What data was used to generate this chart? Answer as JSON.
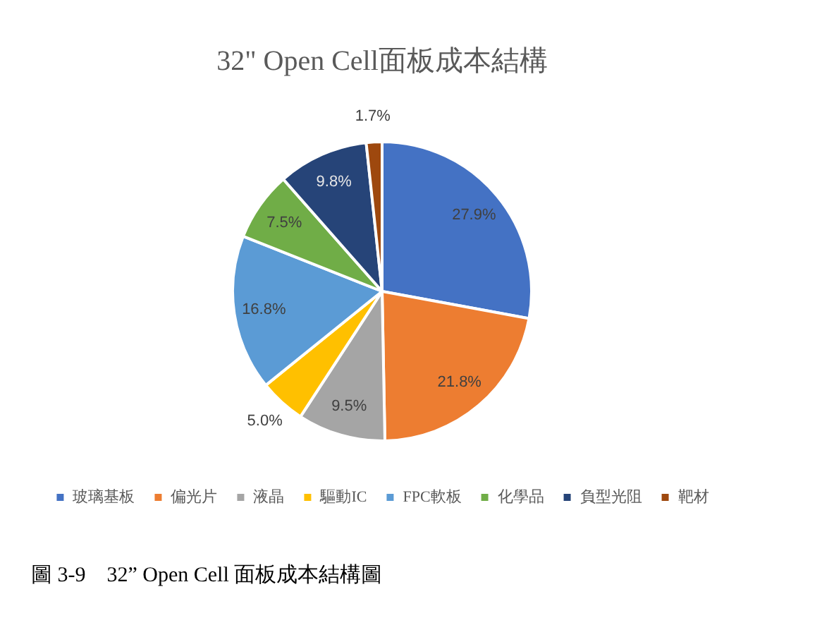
{
  "chart_data": {
    "type": "pie",
    "title": "32\" Open Cell面板成本結構",
    "categories": [
      "玻璃基板",
      "偏光片",
      "液晶",
      "驅動IC",
      "FPC軟板",
      "化學品",
      "負型光阻",
      "靶材"
    ],
    "values": [
      27.9,
      21.8,
      9.5,
      5.0,
      16.8,
      7.5,
      9.8,
      1.7
    ],
    "colors": [
      "#4472c4",
      "#ed7d31",
      "#a5a5a5",
      "#ffc000",
      "#5b9bd5",
      "#70ad47",
      "#264478",
      "#9e480e"
    ],
    "value_labels": [
      "27.9%",
      "21.8%",
      "9.5%",
      "5.0%",
      "16.8%",
      "7.5%",
      "9.8%",
      "1.7%"
    ],
    "legend": "bottom",
    "annotations": [
      "圖 3-9    32” Open Cell 面板成本結構圖"
    ]
  }
}
